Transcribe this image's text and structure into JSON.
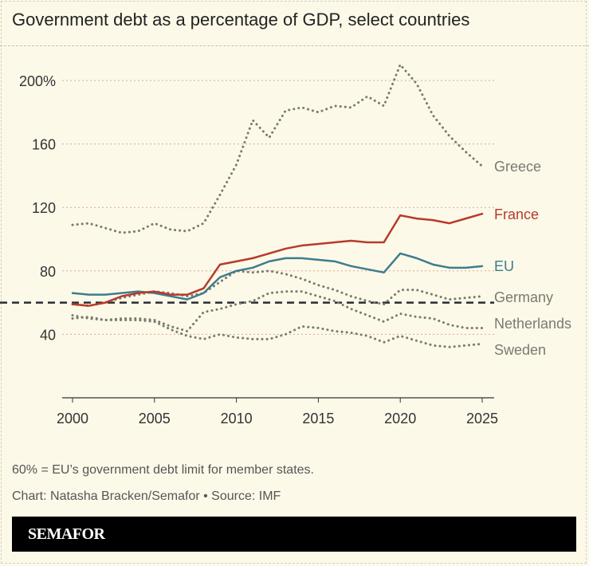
{
  "title": "Government debt as a percentage of GDP, select countries",
  "footnote": "60% = EU’s government debt limit for member states.",
  "credit": "Chart: Natasha Bracken/Semafor • Source: IMF",
  "brand": "SEMAFOR",
  "colors": {
    "background": "#fcf9e8",
    "France": "#b83a2b",
    "EU": "#3e7c8f",
    "other": "#7a7a72",
    "reference": "#2b2b35"
  },
  "chart_data": {
    "type": "line",
    "title": "Government debt as a percentage of GDP, select countries",
    "xlabel": "",
    "ylabel": "",
    "xlim": [
      2000,
      2025
    ],
    "ylim": [
      0,
      210
    ],
    "x_ticks": [
      "2000",
      "2005",
      "2010",
      "2015",
      "2020",
      "2025"
    ],
    "y_ticks": [
      "40",
      "80",
      "120",
      "160",
      "200%"
    ],
    "y_tick_values": [
      40,
      80,
      120,
      160,
      200
    ],
    "grid": "horizontal dotted",
    "reference_line": {
      "value": 60,
      "style": "dashed"
    },
    "x": [
      2000,
      2001,
      2002,
      2003,
      2004,
      2005,
      2006,
      2007,
      2008,
      2009,
      2010,
      2011,
      2012,
      2013,
      2014,
      2015,
      2016,
      2017,
      2018,
      2019,
      2020,
      2021,
      2022,
      2023,
      2024,
      2025
    ],
    "series": [
      {
        "name": "Greece",
        "style": "dotted",
        "values": [
          109,
          110,
          107,
          104,
          105,
          110,
          106,
          105,
          110,
          128,
          147,
          175,
          164,
          181,
          183,
          180,
          184,
          183,
          190,
          184,
          210,
          198,
          178,
          165,
          155,
          146
        ]
      },
      {
        "name": "France",
        "style": "solid",
        "values": [
          59,
          58,
          60,
          64,
          66,
          67,
          65,
          65,
          69,
          84,
          86,
          88,
          91,
          94,
          96,
          97,
          98,
          99,
          98,
          98,
          115,
          113,
          112,
          110,
          113,
          116
        ]
      },
      {
        "name": "EU",
        "style": "solid",
        "values": [
          66,
          65,
          65,
          66,
          67,
          66,
          64,
          62,
          66,
          76,
          80,
          82,
          86,
          88,
          88,
          87,
          86,
          83,
          81,
          79,
          91,
          88,
          84,
          82,
          82,
          83
        ]
      },
      {
        "name": "Germany",
        "style": "dotted",
        "values": [
          59,
          58,
          60,
          63,
          65,
          67,
          66,
          64,
          66,
          73,
          80,
          79,
          80,
          78,
          75,
          71,
          68,
          64,
          61,
          59,
          68,
          68,
          65,
          62,
          63,
          64
        ]
      },
      {
        "name": "Netherlands",
        "style": "dotted",
        "values": [
          52,
          50,
          49,
          50,
          50,
          49,
          45,
          42,
          54,
          56,
          59,
          61,
          66,
          67,
          67,
          64,
          61,
          56,
          52,
          48,
          53,
          51,
          50,
          46,
          44,
          44
        ]
      },
      {
        "name": "Sweden",
        "style": "dotted",
        "values": [
          50,
          51,
          49,
          49,
          49,
          48,
          43,
          39,
          37,
          40,
          38,
          37,
          37,
          40,
          45,
          44,
          42,
          41,
          39,
          35,
          39,
          36,
          33,
          32,
          33,
          34
        ]
      }
    ]
  }
}
